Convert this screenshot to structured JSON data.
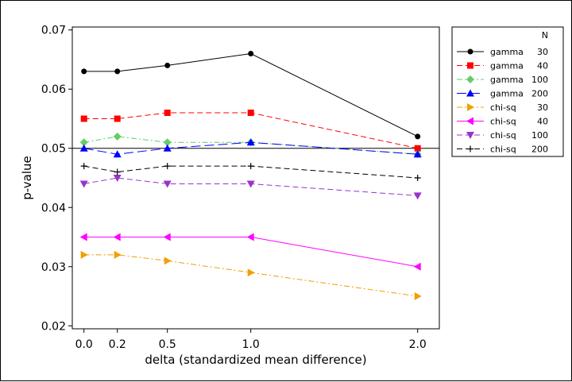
{
  "chart_data": {
    "type": "line",
    "title": "",
    "xlabel": "delta (standardized mean difference)",
    "ylabel": "p-value",
    "x": [
      0.0,
      0.2,
      0.5,
      1.0,
      2.0
    ],
    "x_tick_labels": [
      "0.0",
      "0.2",
      "0.5",
      "1.0",
      "2.0"
    ],
    "xlim": [
      -0.07,
      2.13
    ],
    "ylim": [
      0.0195,
      0.0705
    ],
    "y_ticks": [
      0.02,
      0.03,
      0.04,
      0.05,
      0.06,
      0.07
    ],
    "y_tick_labels": [
      "0.02",
      "0.03",
      "0.04",
      "0.05",
      "0.06",
      "0.07"
    ],
    "reference_line": 0.05,
    "legend": {
      "header": "N",
      "placement": "right, outside plot"
    },
    "series": [
      {
        "name": "gamma",
        "n": "30",
        "color": "#000000",
        "marker": "circle",
        "dash": "solid",
        "values": [
          0.063,
          0.063,
          0.064,
          0.066,
          0.052
        ]
      },
      {
        "name": "gamma",
        "n": "40",
        "color": "#ff0000",
        "marker": "square",
        "dash": "dashed",
        "values": [
          0.055,
          0.055,
          0.056,
          0.056,
          0.05
        ]
      },
      {
        "name": "gamma",
        "n": "100",
        "color": "#66cc66",
        "marker": "diamond",
        "dash": "dashdot",
        "values": [
          0.051,
          0.052,
          0.051,
          0.051,
          0.049
        ]
      },
      {
        "name": "gamma",
        "n": "200",
        "color": "#0000ff",
        "marker": "triangle-up",
        "dash": "longdash",
        "values": [
          0.05,
          0.049,
          0.05,
          0.051,
          0.049
        ]
      },
      {
        "name": "chi-sq",
        "n": "30",
        "color": "#f0a000",
        "marker": "triangle-right",
        "dash": "dashdot",
        "values": [
          0.032,
          0.032,
          0.031,
          0.029,
          0.025
        ]
      },
      {
        "name": "chi-sq",
        "n": "40",
        "color": "#ff00ff",
        "marker": "triangle-left",
        "dash": "solid",
        "values": [
          0.035,
          0.035,
          0.035,
          0.035,
          0.03
        ]
      },
      {
        "name": "chi-sq",
        "n": "100",
        "color": "#9933cc",
        "marker": "triangle-down",
        "dash": "dashed",
        "values": [
          0.044,
          0.045,
          0.044,
          0.044,
          0.042
        ]
      },
      {
        "name": "chi-sq",
        "n": "200",
        "color": "#000000",
        "marker": "plus",
        "dash": "dashed",
        "values": [
          0.047,
          0.046,
          0.047,
          0.047,
          0.045
        ]
      }
    ]
  }
}
